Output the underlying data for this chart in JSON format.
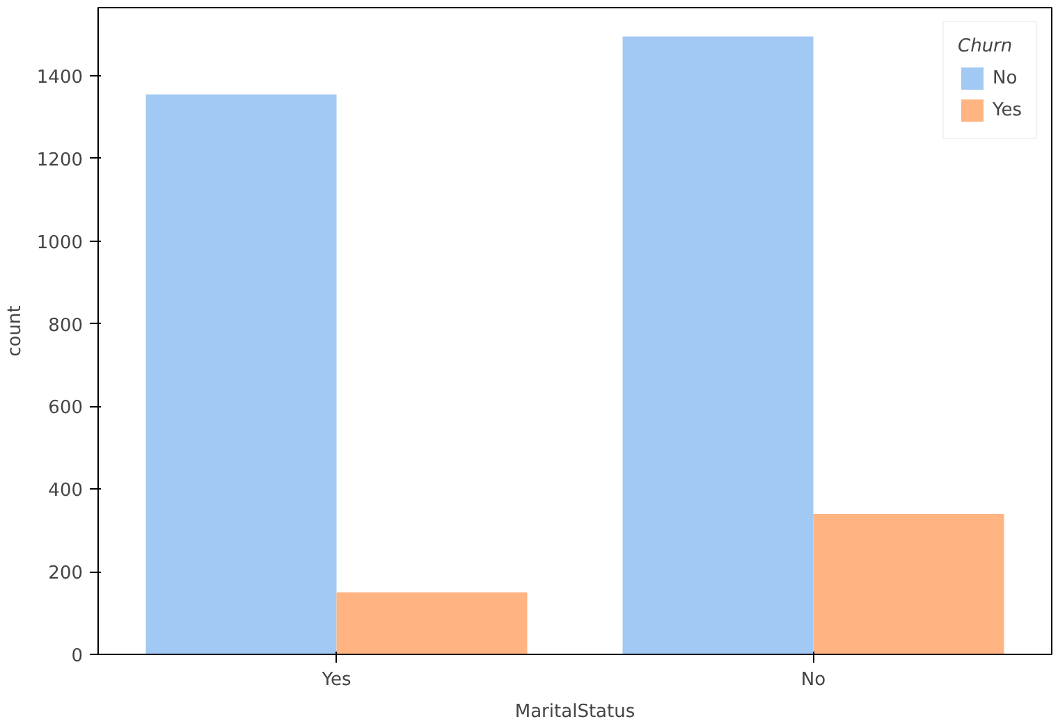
{
  "chart_data": {
    "type": "bar",
    "xlabel": "MaritalStatus",
    "ylabel": "count",
    "legend_title": "Churn",
    "categories": [
      "Yes",
      "No"
    ],
    "series": [
      {
        "name": "No",
        "color": "#a1c9f4",
        "values": [
          1355,
          1495
        ]
      },
      {
        "name": "Yes",
        "color": "#ffb482",
        "values": [
          150,
          340
        ]
      }
    ],
    "ylim": [
      0,
      1565
    ],
    "yticks": [
      0,
      200,
      400,
      600,
      800,
      1000,
      1200,
      1400
    ],
    "legend": "top right",
    "grid": false
  }
}
